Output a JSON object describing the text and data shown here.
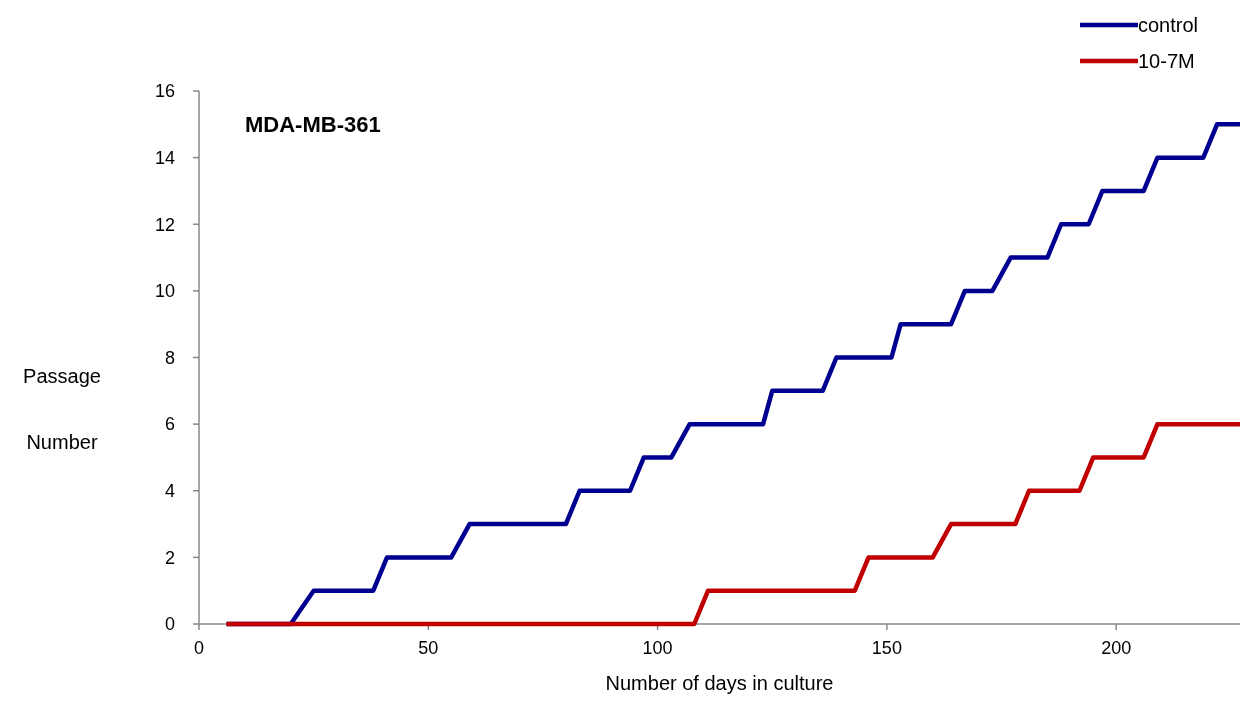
{
  "chart_data": {
    "type": "line",
    "title": "MDA-MB-361",
    "xlabel": "Number of days in culture",
    "ylabel": "Passage\nNumber",
    "xlim": [
      0,
      227
    ],
    "xticks": [
      0,
      50,
      100,
      150,
      200
    ],
    "ylim": [
      0,
      16
    ],
    "yticks": [
      0,
      2,
      4,
      6,
      8,
      10,
      12,
      14,
      16
    ],
    "grid": false,
    "legend": "top right",
    "marker": "none",
    "line_style": "solid",
    "series": [
      {
        "name": "control",
        "color": "#000090",
        "x": [
          6,
          20,
          25,
          38,
          41,
          55,
          59,
          80,
          83,
          94,
          97,
          103,
          107,
          123,
          125,
          136,
          139,
          151,
          153,
          164,
          167,
          173,
          177,
          185,
          188,
          194,
          197,
          206,
          209,
          219,
          222,
          227
        ],
        "values": [
          0,
          0,
          1,
          1,
          2,
          2,
          3,
          3,
          4,
          4,
          5,
          5,
          6,
          6,
          7,
          7,
          8,
          8,
          9,
          9,
          10,
          10,
          11,
          11,
          12,
          12,
          13,
          13,
          14,
          14,
          15,
          15
        ]
      },
      {
        "name": "10-7M",
        "color": "#c00000",
        "x": [
          6,
          108,
          111,
          143,
          146,
          160,
          164,
          178,
          181,
          192,
          195,
          206,
          209,
          227
        ],
        "values": [
          0,
          0,
          1,
          1,
          2,
          2,
          3,
          3,
          4,
          4,
          5,
          5,
          6,
          6
        ]
      }
    ]
  }
}
